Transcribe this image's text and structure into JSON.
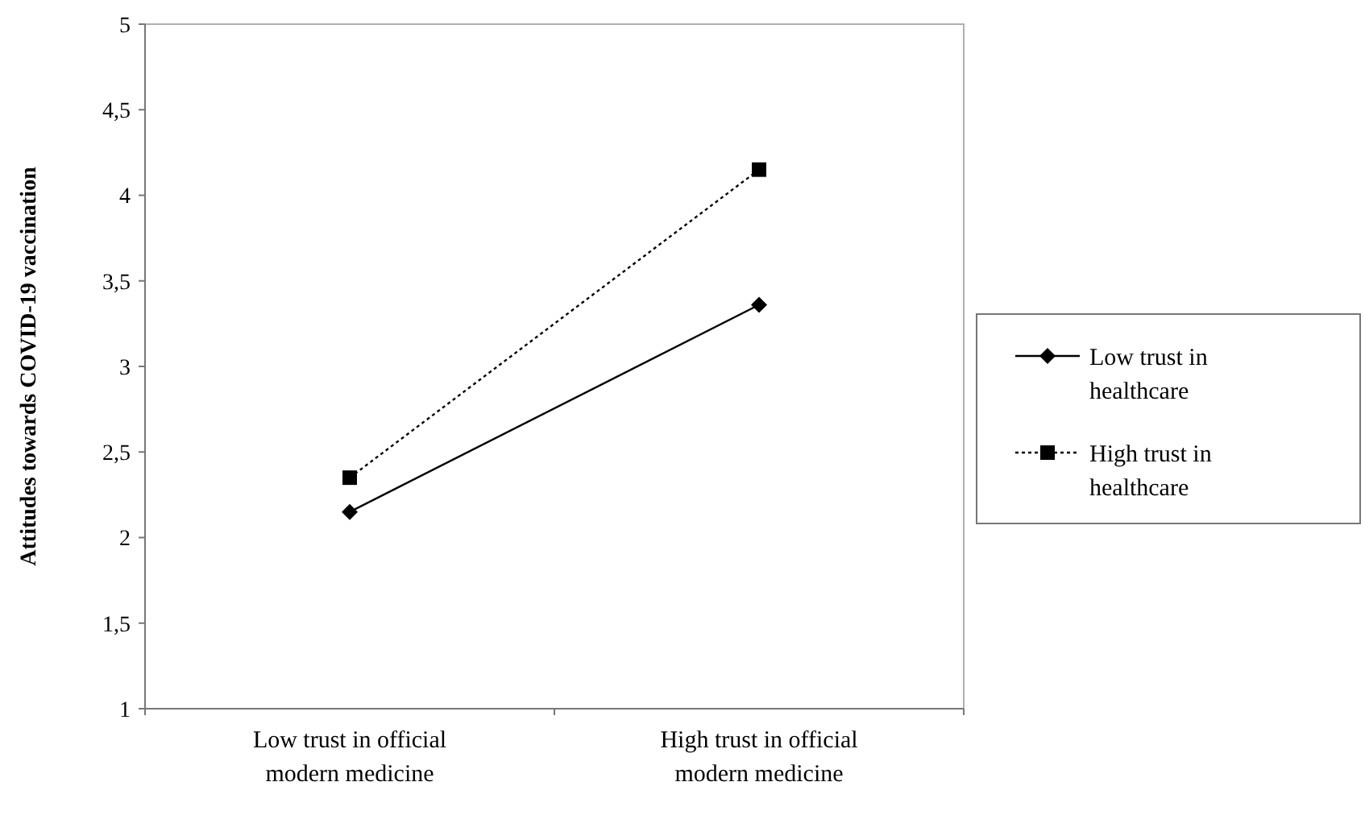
{
  "chart_data": {
    "type": "line",
    "ylabel": "Attitudes towards COVID-19 vaccination",
    "categories": [
      "Low trust in official modern medicine",
      "High trust in official modern medicine"
    ],
    "ylim": [
      1,
      5
    ],
    "yticks": [
      1,
      {
        "value": 1.5,
        "label": "1,5"
      },
      2,
      {
        "value": 2.5,
        "label": "2,5"
      },
      3,
      {
        "value": 3.5,
        "label": "3,5"
      },
      4,
      {
        "value": 4.5,
        "label": "4,5"
      },
      5
    ],
    "legend": "right",
    "grid": false,
    "series": [
      {
        "name": "Low trust in healthcare",
        "color": "#000000",
        "values": [
          2.15,
          3.36
        ],
        "marker": "diamond",
        "line_style": "solid"
      },
      {
        "name": "High trust in healthcare",
        "color": "#000000",
        "values": [
          2.35,
          4.15
        ],
        "marker": "square",
        "line_style": "dotted"
      }
    ]
  }
}
